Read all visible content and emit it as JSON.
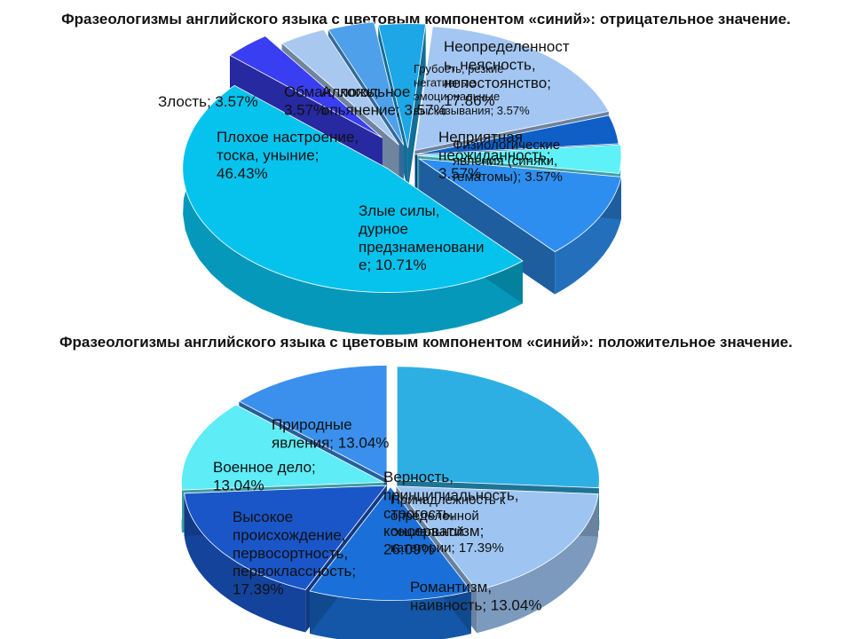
{
  "chart_data": [
    {
      "type": "pie",
      "title": "Фразеологизмы английского языка  с цветовым компонентом  «синий»: отрицательное значение.",
      "slices": [
        {
          "label": "Неопределенность, неясность, непостоянство",
          "value": 17.86,
          "text": [
            "Неопределенност",
            "ь, неясность,",
            "непостоянство;",
            "17.86%"
          ],
          "color": "#a4c6f2"
        },
        {
          "label": "Неприятная неожиданность",
          "value": 3.57,
          "text": [
            "Неприятная",
            "неожиданность;",
            "3.57%"
          ],
          "color": "#0f5fc6"
        },
        {
          "label": "Физиологические явления (синяки, гематомы)",
          "value": 3.57,
          "text": [
            "Физиологические",
            "явления (синяки,",
            "гематомы); 3.57%"
          ],
          "color": "#5ef1f7"
        },
        {
          "label": "Злые силы, дурное предзнаменование",
          "value": 10.71,
          "text": [
            "Злые силы,",
            "дурное",
            "предзнаменовани",
            "е; 10.71%"
          ],
          "color": "#2e8ef0"
        },
        {
          "label": "Плохое настроение, тоска, уныние",
          "value": 46.43,
          "text": [
            "Плохое настроение,",
            "тоска, уныние;",
            "46.43%"
          ],
          "color": "#06c3ee"
        },
        {
          "label": "Злость",
          "value": 3.57,
          "text": [
            "Злость; 3.57%"
          ],
          "color": "#3a3ef2"
        },
        {
          "label": "Обман, ложь",
          "value": 3.57,
          "text": [
            "Обман, ложь;",
            "3.57%"
          ],
          "color": "#a8c8f0"
        },
        {
          "label": "Алкогольное опьянение",
          "value": 3.57,
          "text": [
            "Алкогольное",
            "опьянение; 3.57%"
          ],
          "color": "#4fa0ea"
        },
        {
          "label": "Грубость, негативные эмоциональные высказывания",
          "value": 3.57,
          "text": [
            "Грубость, резкие",
            "негативные",
            "эмоциональные",
            "высказывания; 3.57%"
          ],
          "color": "#1da7e6"
        }
      ]
    },
    {
      "type": "pie",
      "title": "Фразеологизмы английского языка  с цветовым компонентом  «синий»: положительное значение.",
      "slices": [
        {
          "label": "Верность, принципиальность, строгость, консерватизм",
          "value": 26.09,
          "text": [
            "Верность,",
            "принципиальность,",
            "строгость,",
            "консерватизм;",
            "26.09%"
          ],
          "color": "#2eafe4"
        },
        {
          "label": "Принадлежность к определенной социальной категории",
          "value": 17.39,
          "text": [
            "Принадлежность к",
            "определенной",
            "социальной",
            "категории; 17.39%"
          ],
          "color": "#9ec5f2"
        },
        {
          "label": "Романтизм, наивность",
          "value": 13.04,
          "text": [
            "Романтизм,",
            "наивность; 13.04%"
          ],
          "color": "#1a6fd8"
        },
        {
          "label": "Высокое происхождение, первосортность, первоклассность",
          "value": 17.39,
          "text": [
            "Высокое",
            "происхождение,",
            "первосортность,",
            "первоклассность;",
            "17.39%"
          ],
          "color": "#1a56c8"
        },
        {
          "label": "Военное дело",
          "value": 13.04,
          "text": [
            "Военное дело;",
            "13.04%"
          ],
          "color": "#5eecf6"
        },
        {
          "label": "Природные явления",
          "value": 13.04,
          "text": [
            "Природные",
            "явления; 13.04%"
          ],
          "color": "#3a90ec"
        }
      ]
    }
  ],
  "extra_colors": {
    "pos_top_slice": "#1cc8f0"
  }
}
